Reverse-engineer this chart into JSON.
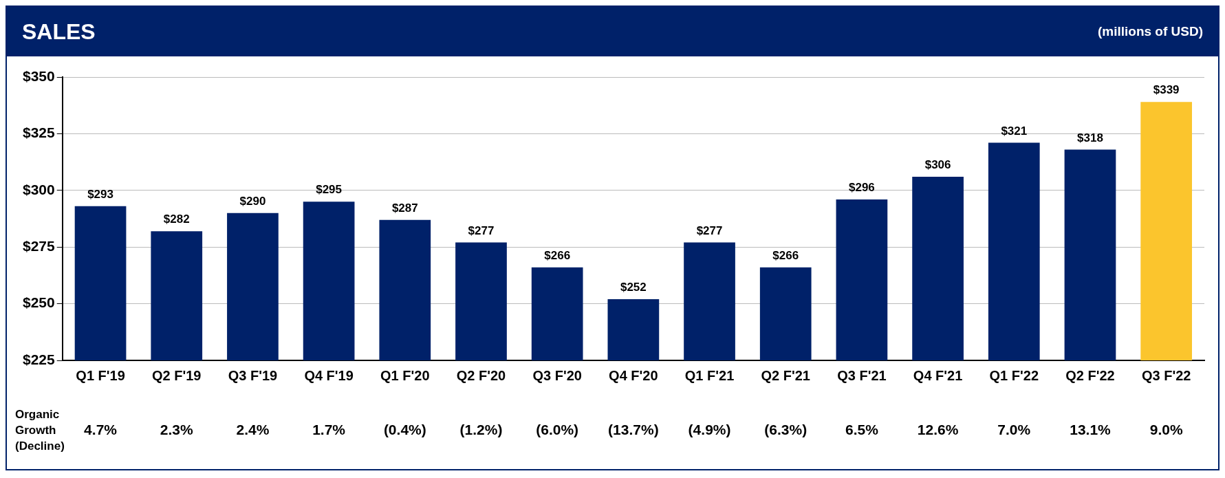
{
  "chart_data": {
    "type": "bar",
    "title": "SALES",
    "subtitle": "(millions of USD)",
    "categories": [
      "Q1 F'19",
      "Q2 F'19",
      "Q3 F'19",
      "Q4 F'19",
      "Q1 F'20",
      "Q2 F'20",
      "Q3 F'20",
      "Q4 F'20",
      "Q1 F'21",
      "Q2 F'21",
      "Q3 F'21",
      "Q4 F'21",
      "Q1 F'22",
      "Q2 F'22",
      "Q3 F'22"
    ],
    "values": [
      293,
      282,
      290,
      295,
      287,
      277,
      266,
      252,
      277,
      266,
      296,
      306,
      321,
      318,
      339
    ],
    "value_labels": [
      "$293",
      "$282",
      "$290",
      "$295",
      "$287",
      "$277",
      "$266",
      "$252",
      "$277",
      "$266",
      "$296",
      "$306",
      "$321",
      "$318",
      "$339"
    ],
    "colors": [
      "#002169",
      "#002169",
      "#002169",
      "#002169",
      "#002169",
      "#002169",
      "#002169",
      "#002169",
      "#002169",
      "#002169",
      "#002169",
      "#002169",
      "#002169",
      "#002169",
      "#fbc52d"
    ],
    "ylim": [
      225,
      350
    ],
    "yticks": [
      {
        "value": 225,
        "label": "$225"
      },
      {
        "value": 250,
        "label": "$250"
      },
      {
        "value": 275,
        "label": "$275"
      },
      {
        "value": 300,
        "label": "$300"
      },
      {
        "value": 325,
        "label": "$325"
      },
      {
        "value": 350,
        "label": "$350"
      }
    ],
    "grid": "y",
    "legend": false,
    "annotations": [
      "Organic Growth (Decline)",
      "4.7%",
      "2.3%",
      "2.4%",
      "1.7%",
      "(0.4%)",
      "(1.2%)",
      "(6.0%)",
      "(13.7%)",
      "(4.9%)",
      "(6.3%)",
      "6.5%",
      "12.6%",
      "7.0%",
      "13.1%",
      "9.0%"
    ]
  }
}
